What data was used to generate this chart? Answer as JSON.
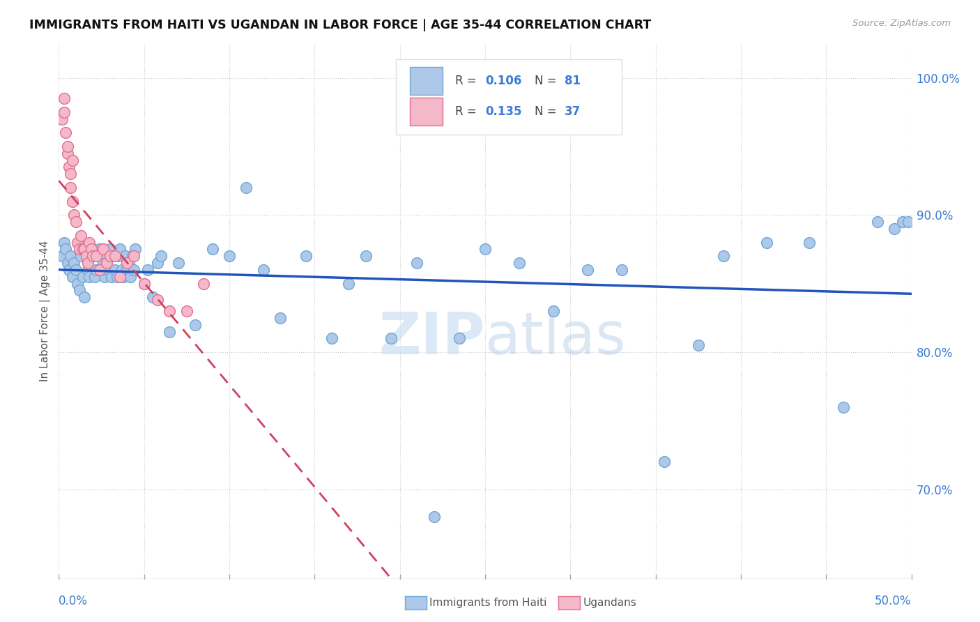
{
  "title": "IMMIGRANTS FROM HAITI VS UGANDAN IN LABOR FORCE | AGE 35-44 CORRELATION CHART",
  "source": "Source: ZipAtlas.com",
  "ylabel": "In Labor Force | Age 35-44",
  "xmin": 0.0,
  "xmax": 0.5,
  "ymin": 0.635,
  "ymax": 1.025,
  "yticks": [
    0.7,
    0.8,
    0.9,
    1.0
  ],
  "ytick_labels": [
    "70.0%",
    "80.0%",
    "90.0%",
    "100.0%"
  ],
  "haiti_color": "#adc8e8",
  "haiti_edge_color": "#6fa8d5",
  "ugandan_color": "#f5b8ca",
  "ugandan_edge_color": "#e07090",
  "haiti_line_color": "#2255bb",
  "ugandan_line_color": "#d04060",
  "watermark_color": "#cce0f5",
  "haiti_x": [
    0.002,
    0.003,
    0.004,
    0.005,
    0.006,
    0.007,
    0.008,
    0.009,
    0.01,
    0.011,
    0.012,
    0.013,
    0.014,
    0.015,
    0.016,
    0.017,
    0.018,
    0.019,
    0.02,
    0.021,
    0.022,
    0.023,
    0.024,
    0.025,
    0.026,
    0.027,
    0.028,
    0.029,
    0.03,
    0.031,
    0.032,
    0.033,
    0.034,
    0.035,
    0.036,
    0.037,
    0.038,
    0.039,
    0.04,
    0.041,
    0.042,
    0.043,
    0.044,
    0.045,
    0.05,
    0.052,
    0.055,
    0.058,
    0.06,
    0.065,
    0.07,
    0.08,
    0.09,
    0.1,
    0.11,
    0.12,
    0.13,
    0.145,
    0.16,
    0.17,
    0.18,
    0.195,
    0.21,
    0.22,
    0.235,
    0.25,
    0.27,
    0.29,
    0.31,
    0.33,
    0.355,
    0.375,
    0.39,
    0.415,
    0.44,
    0.46,
    0.48,
    0.49,
    0.495,
    0.498
  ],
  "haiti_y": [
    0.87,
    0.88,
    0.875,
    0.865,
    0.86,
    0.87,
    0.855,
    0.865,
    0.86,
    0.85,
    0.845,
    0.87,
    0.855,
    0.84,
    0.875,
    0.86,
    0.855,
    0.87,
    0.875,
    0.855,
    0.86,
    0.87,
    0.875,
    0.86,
    0.865,
    0.855,
    0.87,
    0.86,
    0.875,
    0.855,
    0.87,
    0.86,
    0.855,
    0.87,
    0.875,
    0.86,
    0.855,
    0.87,
    0.86,
    0.865,
    0.855,
    0.87,
    0.86,
    0.875,
    0.85,
    0.86,
    0.84,
    0.865,
    0.87,
    0.815,
    0.865,
    0.82,
    0.875,
    0.87,
    0.92,
    0.86,
    0.825,
    0.87,
    0.81,
    0.85,
    0.87,
    0.81,
    0.865,
    0.68,
    0.81,
    0.875,
    0.865,
    0.83,
    0.86,
    0.86,
    0.72,
    0.805,
    0.87,
    0.88,
    0.88,
    0.76,
    0.895,
    0.89,
    0.895,
    0.895
  ],
  "ugandan_x": [
    0.002,
    0.003,
    0.003,
    0.004,
    0.005,
    0.005,
    0.006,
    0.007,
    0.007,
    0.008,
    0.008,
    0.009,
    0.01,
    0.011,
    0.012,
    0.013,
    0.014,
    0.015,
    0.016,
    0.017,
    0.018,
    0.019,
    0.02,
    0.022,
    0.024,
    0.026,
    0.028,
    0.03,
    0.033,
    0.036,
    0.04,
    0.044,
    0.05,
    0.058,
    0.065,
    0.075,
    0.085
  ],
  "ugandan_y": [
    0.97,
    0.985,
    0.975,
    0.96,
    0.945,
    0.95,
    0.935,
    0.92,
    0.93,
    0.94,
    0.91,
    0.9,
    0.895,
    0.88,
    0.875,
    0.885,
    0.875,
    0.875,
    0.87,
    0.865,
    0.88,
    0.875,
    0.87,
    0.87,
    0.86,
    0.875,
    0.865,
    0.87,
    0.87,
    0.855,
    0.865,
    0.87,
    0.85,
    0.838,
    0.83,
    0.83,
    0.85
  ]
}
